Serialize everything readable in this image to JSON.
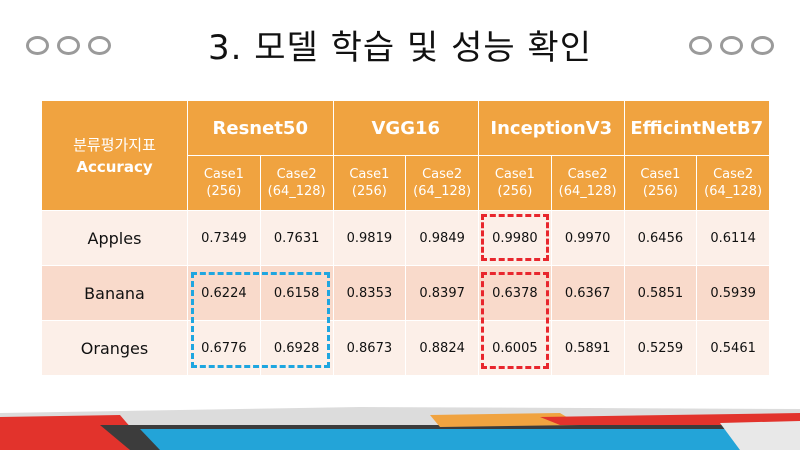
{
  "slide": {
    "title": "3. 모델 학습 및 성능 확인"
  },
  "table": {
    "metric_label_ko": "분류평가지표",
    "metric_label_en": "Accuracy",
    "models": [
      "Resnet50",
      "VGG16",
      "InceptionV3",
      "EfficintNetB7"
    ],
    "cases": [
      [
        "Case1",
        "(256)"
      ],
      [
        "Case2",
        "(64_128)"
      ],
      [
        "Case1",
        "(256)"
      ],
      [
        "Case2",
        "(64_128)"
      ],
      [
        "Case1",
        "(256)"
      ],
      [
        "Case2",
        "(64_128)"
      ],
      [
        "Case1",
        "(256)"
      ],
      [
        "Case2",
        "(64_128)"
      ]
    ],
    "rows": [
      {
        "label": "Apples",
        "values": [
          "0.7349",
          "0.7631",
          "0.9819",
          "0.9849",
          "0.9980",
          "0.9970",
          "0.6456",
          "0.6114"
        ]
      },
      {
        "label": "Banana",
        "values": [
          "0.6224",
          "0.6158",
          "0.8353",
          "0.8397",
          "0.6378",
          "0.6367",
          "0.5851",
          "0.5939"
        ]
      },
      {
        "label": "Oranges",
        "values": [
          "0.6776",
          "0.6928",
          "0.8673",
          "0.8824",
          "0.6005",
          "0.5891",
          "0.5259",
          "0.5461"
        ]
      }
    ]
  },
  "colors": {
    "header_orange": "#f0a340",
    "row_light": "#fcefe8",
    "row_dark": "#f9dacb",
    "highlight_blue": "#1ea6e0",
    "highlight_red": "#e8262d"
  }
}
